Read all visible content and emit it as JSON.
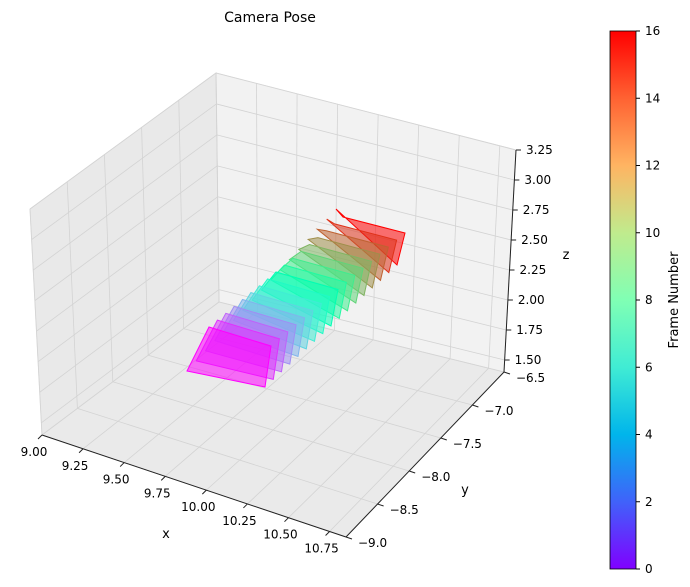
{
  "chart_data": {
    "type": "scatter",
    "projection": "3d",
    "title": "Camera Pose",
    "xlabel": "x",
    "ylabel": "y",
    "zlabel": "z",
    "xlim": [
      9.0,
      10.85
    ],
    "ylim": [
      -9.0,
      -6.5
    ],
    "zlim": [
      1.4,
      3.25
    ],
    "x_ticks": [
      "9.00",
      "9.25",
      "9.50",
      "9.75",
      "10.00",
      "10.25",
      "10.50",
      "10.75"
    ],
    "y_ticks": [
      "−9.0",
      "−8.5",
      "−8.0",
      "−7.5",
      "−7.0",
      "−6.5"
    ],
    "z_ticks": [
      "1.50",
      "1.75",
      "2.00",
      "2.25",
      "2.50",
      "2.75",
      "3.00",
      "3.25"
    ],
    "grid": true,
    "colorbar": {
      "label": "Frame Number",
      "min": 0,
      "max": 16,
      "ticks": [
        "0",
        "2",
        "4",
        "6",
        "8",
        "10",
        "12",
        "14",
        "16"
      ],
      "colormap": "rainbow"
    },
    "frames": [
      {
        "frame": 0
      },
      {
        "frame": 1
      },
      {
        "frame": 2
      },
      {
        "frame": 3
      },
      {
        "frame": 4
      },
      {
        "frame": 5
      },
      {
        "frame": 6
      },
      {
        "frame": 7
      },
      {
        "frame": 8
      },
      {
        "frame": 9
      },
      {
        "frame": 10
      },
      {
        "frame": 11
      },
      {
        "frame": 12
      },
      {
        "frame": 13
      },
      {
        "frame": 14
      },
      {
        "frame": 15
      },
      {
        "frame": 16
      }
    ]
  }
}
